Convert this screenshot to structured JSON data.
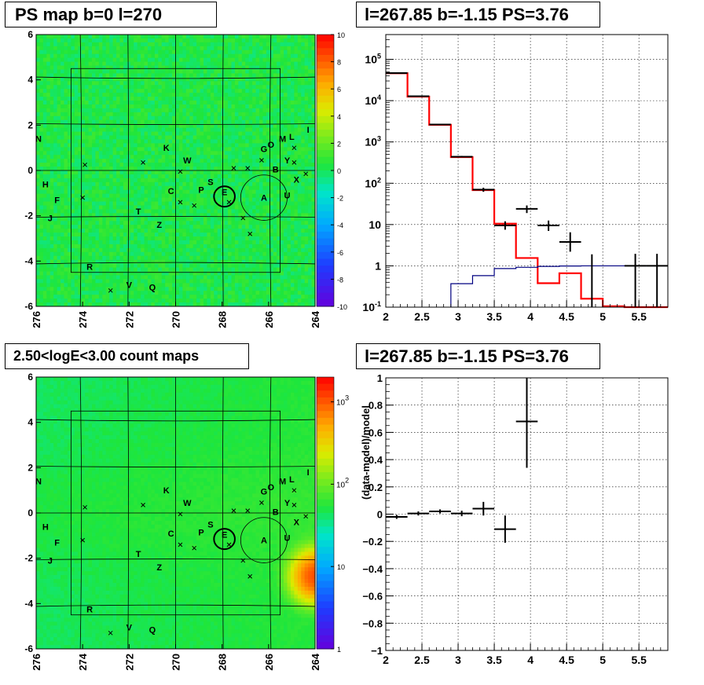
{
  "panels": {
    "top_left_title": "PS map b=0 l=270",
    "top_right_title": "l=267.85 b=-1.15 PS=3.76",
    "bottom_left_title": "2.50<logE<3.00 count maps",
    "bottom_right_title": "l=267.85 b=-1.15 PS=3.76"
  },
  "chart_data": [
    {
      "type": "heatmap",
      "id": "ps-map",
      "title": "PS map b=0 l=270",
      "x_ticks": [
        "276",
        "274",
        "272",
        "270",
        "268",
        "266",
        "264"
      ],
      "y_ticks": [
        "6",
        "4",
        "2",
        "0",
        "-2",
        "-4",
        "-6"
      ],
      "xlim": [
        276,
        264
      ],
      "ylim": [
        -6,
        6
      ],
      "colorbar_ticks": [
        "10",
        "8",
        "6",
        "4",
        "2",
        "0",
        "-2",
        "-4",
        "-6",
        "-8",
        "-10"
      ],
      "zlim": [
        -10,
        10
      ],
      "dominant_value": 0.3,
      "grid": true,
      "source_labels": [
        {
          "t": "N",
          "l": 275.9,
          "b": 1.4
        },
        {
          "t": "H",
          "l": 275.6,
          "b": -0.6
        },
        {
          "t": "F",
          "l": 275.1,
          "b": -1.3
        },
        {
          "t": "J",
          "l": 275.4,
          "b": -2.1
        },
        {
          "t": "K",
          "l": 270.4,
          "b": 1.0
        },
        {
          "t": "W",
          "l": 269.5,
          "b": 0.45
        },
        {
          "t": "C",
          "l": 270.2,
          "b": -0.9
        },
        {
          "t": "T",
          "l": 271.6,
          "b": -1.8
        },
        {
          "t": "Z",
          "l": 270.7,
          "b": -2.4
        },
        {
          "t": "P",
          "l": 268.9,
          "b": -0.85
        },
        {
          "t": "S",
          "l": 268.5,
          "b": -0.5
        },
        {
          "t": "E",
          "l": 267.9,
          "b": -0.95
        },
        {
          "t": "A",
          "l": 266.2,
          "b": -1.2
        },
        {
          "t": "U",
          "l": 265.2,
          "b": -1.1
        },
        {
          "t": "G",
          "l": 266.2,
          "b": 0.95
        },
        {
          "t": "O",
          "l": 265.9,
          "b": 1.15
        },
        {
          "t": "M",
          "l": 265.4,
          "b": 1.4
        },
        {
          "t": "L",
          "l": 265.0,
          "b": 1.5
        },
        {
          "t": "I",
          "l": 264.3,
          "b": 1.8
        },
        {
          "t": "B",
          "l": 265.7,
          "b": 0.05
        },
        {
          "t": "Y",
          "l": 265.2,
          "b": 0.45
        },
        {
          "t": "X",
          "l": 264.8,
          "b": -0.4
        },
        {
          "t": "R",
          "l": 273.7,
          "b": -4.25
        },
        {
          "t": "V",
          "l": 272.0,
          "b": -5.05
        },
        {
          "t": "Q",
          "l": 271.0,
          "b": -5.15
        }
      ],
      "source_crosses": [
        {
          "l": 273.9,
          "b": 0.25
        },
        {
          "l": 271.4,
          "b": 0.35
        },
        {
          "l": 269.8,
          "b": -0.05
        },
        {
          "l": 267.5,
          "b": 0.1
        },
        {
          "l": 266.9,
          "b": 0.1
        },
        {
          "l": 266.3,
          "b": 0.45
        },
        {
          "l": 264.9,
          "b": 0.35
        },
        {
          "l": 264.4,
          "b": -0.15
        },
        {
          "l": 264.9,
          "b": 1.0
        },
        {
          "l": 274.0,
          "b": -1.2
        },
        {
          "l": 269.8,
          "b": -1.4
        },
        {
          "l": 269.2,
          "b": -1.55
        },
        {
          "l": 267.7,
          "b": -1.4
        },
        {
          "l": 267.1,
          "b": -2.1
        },
        {
          "l": 266.8,
          "b": -2.8
        },
        {
          "l": 272.8,
          "b": -5.3
        }
      ],
      "circles": [
        {
          "l": 267.9,
          "b": -1.15,
          "r": 0.45,
          "bold": true
        },
        {
          "l": 266.2,
          "b": -1.2,
          "r": 1.0,
          "bold": false
        }
      ],
      "inner_box": {
        "l1": 274.5,
        "l2": 265.5,
        "b1": -4.5,
        "b2": 4.5
      }
    },
    {
      "type": "line",
      "id": "spectrum",
      "title": "l=267.85 b=-1.15 PS=3.76",
      "xlim": [
        2,
        5.9
      ],
      "ylim_log10": [
        -1,
        5.6
      ],
      "log_y": true,
      "x_ticks": [
        "2",
        "2.5",
        "3",
        "3.5",
        "4",
        "4.5",
        "5",
        "5.5"
      ],
      "y_ticks": [
        "10^-1",
        "1",
        "10",
        "10^2",
        "10^3",
        "10^4",
        "10^5"
      ],
      "grid": true,
      "series": [
        {
          "type": "step",
          "color": "#ff0000",
          "edges": [
            2,
            2.3,
            2.6,
            2.9,
            3.2,
            3.5,
            3.8,
            4.1,
            4.4,
            4.7,
            5.0,
            5.3,
            5.6,
            5.9
          ],
          "values": [
            46000,
            12500,
            2600,
            430,
            68,
            10.5,
            1.55,
            0.38,
            0.66,
            0.16,
            0.105,
            0.085,
            0.085
          ]
        },
        {
          "type": "step",
          "color": "#000080",
          "edges": [
            2.9,
            3.2,
            3.5,
            3.8,
            4.1,
            4.4,
            4.7,
            5.0,
            5.3,
            5.6,
            5.9
          ],
          "values": [
            0.37,
            0.58,
            0.86,
            0.92,
            0.97,
            0.99,
            1.0,
            1.0,
            1.0,
            1.0
          ]
        },
        {
          "type": "errorbars",
          "color": "#000000",
          "points": [
            {
              "x": 2.15,
              "xerr": 0.15,
              "y": 46500,
              "ylo": 46000,
              "yhi": 47000
            },
            {
              "x": 2.45,
              "xerr": 0.15,
              "y": 12800,
              "ylo": 12500,
              "yhi": 13100
            },
            {
              "x": 2.75,
              "xerr": 0.15,
              "y": 2650,
              "ylo": 2580,
              "yhi": 2720
            },
            {
              "x": 3.05,
              "xerr": 0.15,
              "y": 440,
              "ylo": 420,
              "yhi": 460
            },
            {
              "x": 3.35,
              "xerr": 0.15,
              "y": 70,
              "ylo": 62,
              "yhi": 78
            },
            {
              "x": 3.65,
              "xerr": 0.15,
              "y": 9.5,
              "ylo": 7.5,
              "yhi": 12
            },
            {
              "x": 3.95,
              "xerr": 0.15,
              "y": 24,
              "ylo": 19,
              "yhi": 29
            },
            {
              "x": 4.25,
              "xerr": 0.15,
              "y": 9.5,
              "ylo": 7,
              "yhi": 12.5
            },
            {
              "x": 4.55,
              "xerr": 0.15,
              "y": 3.8,
              "ylo": 2.2,
              "yhi": 6.5
            },
            {
              "x": 4.85,
              "xerr": 0.0,
              "y": 0.1,
              "ylo": 0.1,
              "yhi": 1.9
            },
            {
              "x": 5.45,
              "xerr": 0.15,
              "y": 1.0,
              "ylo": 0.1,
              "yhi": 1.95
            },
            {
              "x": 5.75,
              "xerr": 0.15,
              "y": 1.0,
              "ylo": 0.1,
              "yhi": 1.95
            }
          ]
        }
      ]
    },
    {
      "type": "heatmap",
      "id": "count-map",
      "title": "2.50<logE<3.00 count maps",
      "x_ticks": [
        "276",
        "274",
        "272",
        "270",
        "268",
        "266",
        "264"
      ],
      "y_ticks": [
        "6",
        "4",
        "2",
        "0",
        "-2",
        "-4",
        "-6"
      ],
      "xlim": [
        276,
        264
      ],
      "ylim": [
        -6,
        6
      ],
      "colorbar_ticks_log": [
        "10^3",
        "10^2",
        "10",
        "1"
      ],
      "zlim": [
        1,
        2000
      ],
      "log_z": true,
      "hotspot": {
        "l": 264.0,
        "b": -2.8,
        "peak": 1000
      },
      "grid": true
    },
    {
      "type": "scatter",
      "id": "residuals",
      "title": "l=267.85 b=-1.15 PS=3.76",
      "ylabel": "(data-model)/model",
      "xlim": [
        2,
        5.9
      ],
      "ylim": [
        -1,
        1
      ],
      "x_ticks": [
        "2",
        "2.5",
        "3",
        "3.5",
        "4",
        "4.5",
        "5",
        "5.5"
      ],
      "y_ticks": [
        "1",
        "0.8",
        "0.6",
        "0.4",
        "0.2",
        "0",
        "-0.2",
        "-0.4",
        "-0.6",
        "-0.8",
        "-1"
      ],
      "grid": true,
      "points": [
        {
          "x": 2.15,
          "xerr": 0.15,
          "y": -0.02,
          "yerr": 0.015
        },
        {
          "x": 2.45,
          "xerr": 0.15,
          "y": 0.005,
          "yerr": 0.015
        },
        {
          "x": 2.75,
          "xerr": 0.15,
          "y": 0.02,
          "yerr": 0.015
        },
        {
          "x": 3.05,
          "xerr": 0.15,
          "y": 0.005,
          "yerr": 0.02
        },
        {
          "x": 3.35,
          "xerr": 0.15,
          "y": 0.04,
          "yerr": 0.05
        },
        {
          "x": 3.65,
          "xerr": 0.15,
          "y": -0.11,
          "yerr": 0.1
        },
        {
          "x": 3.95,
          "xerr": 0.15,
          "y": 0.68,
          "yerr": 0.34
        }
      ]
    }
  ]
}
